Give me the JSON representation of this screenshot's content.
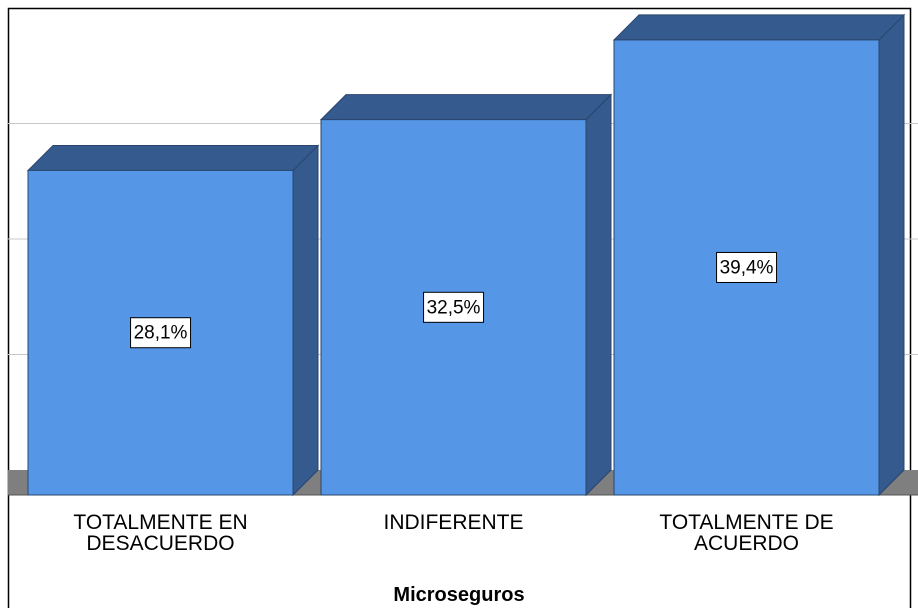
{
  "chart_data": {
    "type": "bar",
    "xlabel": "Microseguros",
    "categories": [
      "TOTALMENTE EN DESACUERDO",
      "INDIFERENTE",
      "TOTALMENTE DE ACUERDO"
    ],
    "values": [
      28.1,
      32.5,
      39.4
    ],
    "value_labels": [
      "28,1%",
      "32,5%",
      "39,4%"
    ],
    "color": "#5596e6",
    "side_color": "#345a8e",
    "ylim": [
      0,
      40
    ],
    "yticks": [
      10,
      20,
      30
    ],
    "grid": true
  }
}
